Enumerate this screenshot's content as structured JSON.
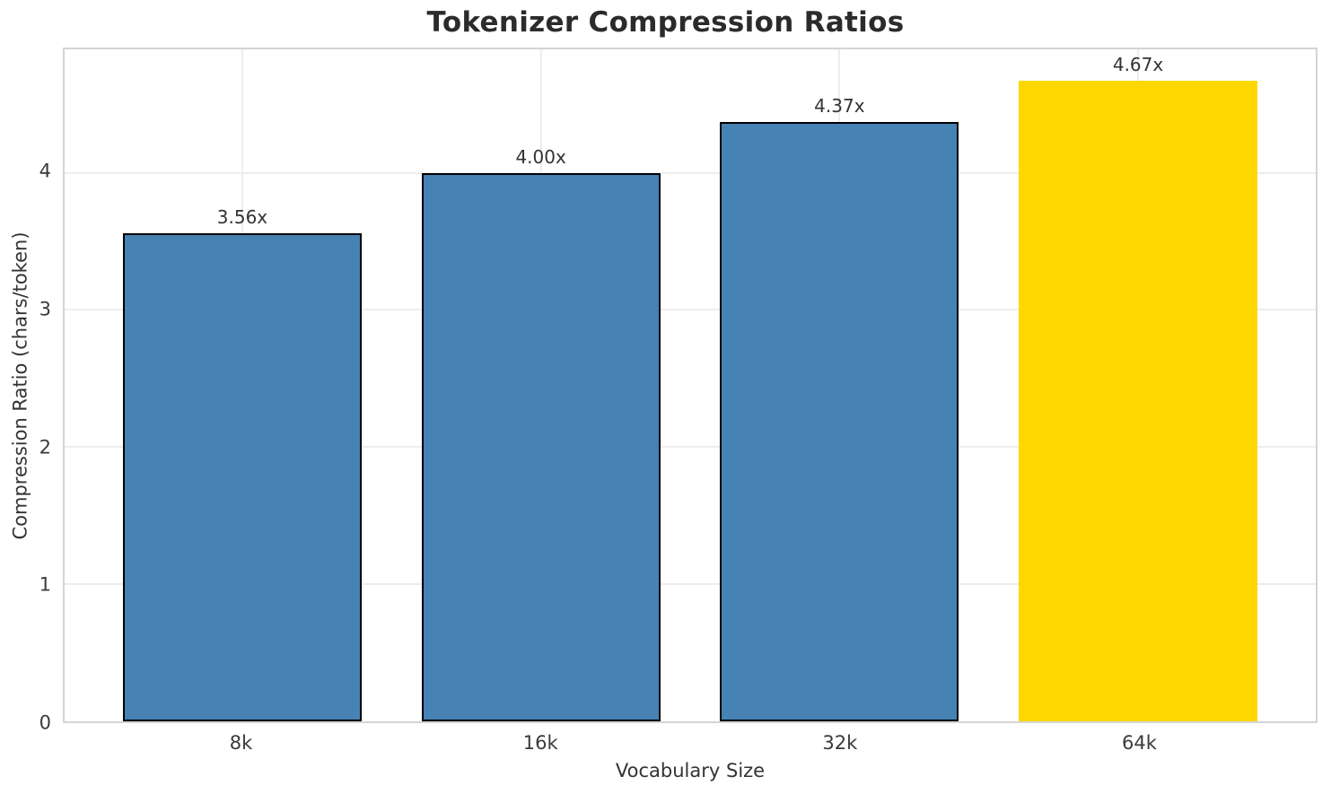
{
  "chart_data": {
    "type": "bar",
    "title": "Tokenizer Compression Ratios",
    "xlabel": "Vocabulary Size",
    "ylabel": "Compression Ratio (chars/token)",
    "categories": [
      "8k",
      "16k",
      "32k",
      "64k"
    ],
    "values": [
      3.56,
      4.0,
      4.37,
      4.67
    ],
    "bar_labels": [
      "3.56x",
      "4.00x",
      "4.37x",
      "4.67x"
    ],
    "yticks": [
      0,
      1,
      2,
      3,
      4
    ],
    "ylim": [
      0,
      4.9
    ],
    "grid": true,
    "legend_position": "none",
    "bar_colors": [
      "#4682B4",
      "#4682B4",
      "#4682B4",
      "#FFD700"
    ],
    "bar_edge_colors": [
      "#000000",
      "#000000",
      "#000000",
      "none"
    ],
    "highlighted_category": "64k"
  },
  "colors": {
    "background": "#ffffff",
    "bar_default": "#4682B4",
    "bar_highlight": "#FFD700",
    "bar_edge": "#000000",
    "gridline": "#ededed",
    "spine": "#d4d4d4",
    "title_text": "#2b2b2b",
    "tick_text": "#3a3a3a",
    "label_text": "#333333"
  }
}
